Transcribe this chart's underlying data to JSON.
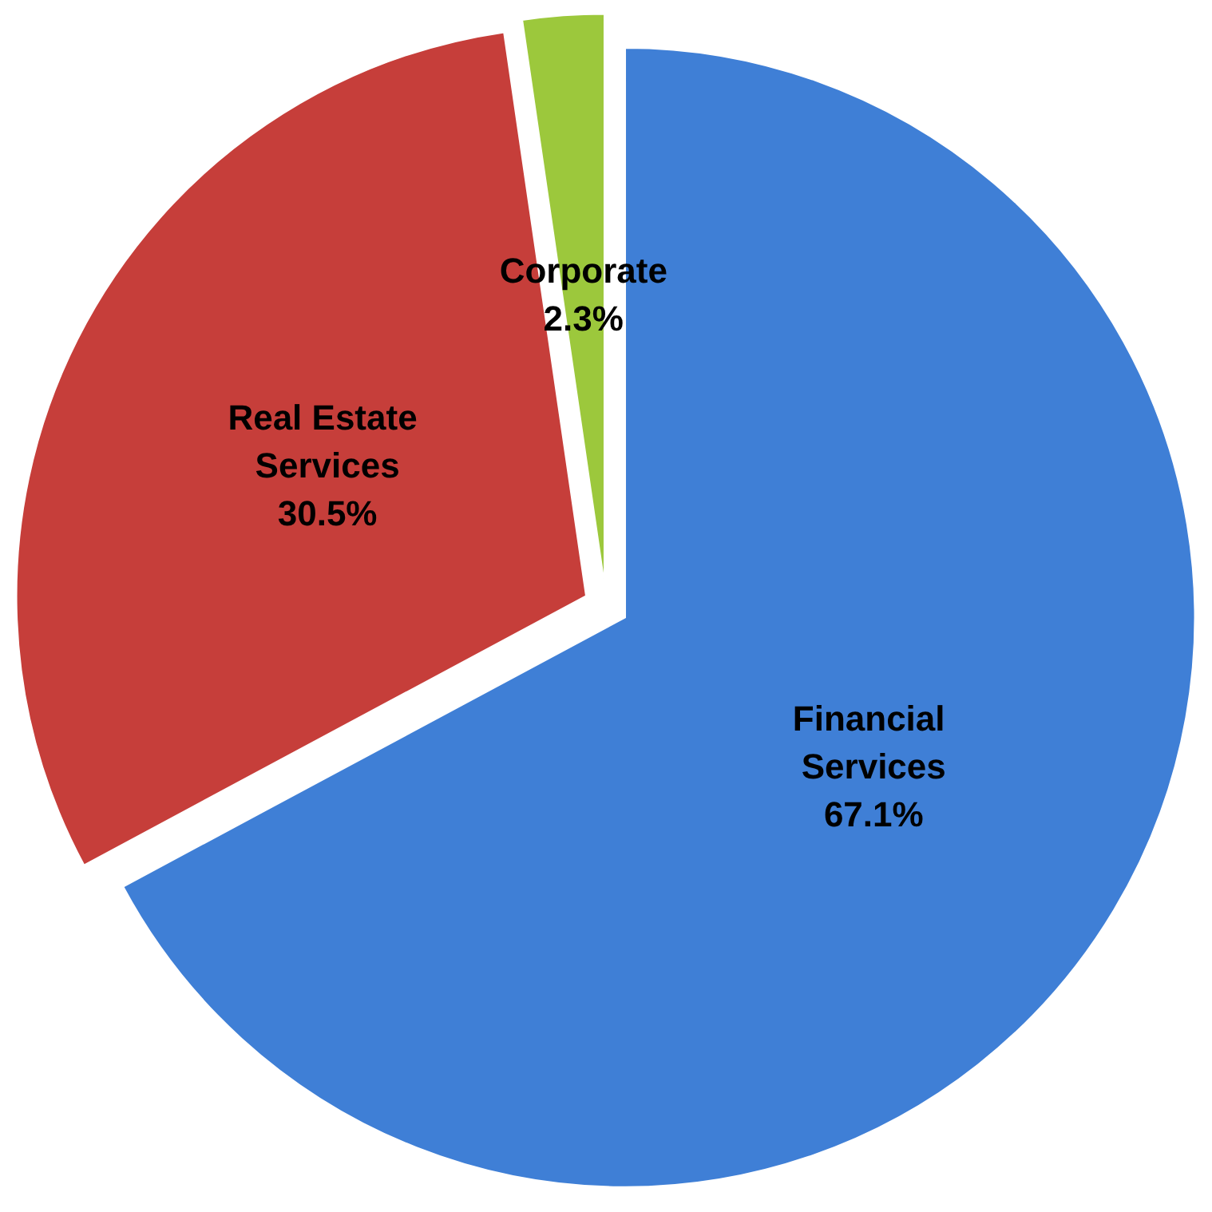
{
  "chart_data": {
    "type": "pie",
    "categories": [
      "Financial Services",
      "Real Estate Services",
      "Corporate"
    ],
    "values": [
      67.1,
      30.5,
      2.3
    ],
    "value_labels": [
      "67.1%",
      "30.5%",
      "2.3%"
    ],
    "colors": [
      "#3f7fd6",
      "#c63e3a",
      "#9cc83c"
    ],
    "legend": false
  }
}
